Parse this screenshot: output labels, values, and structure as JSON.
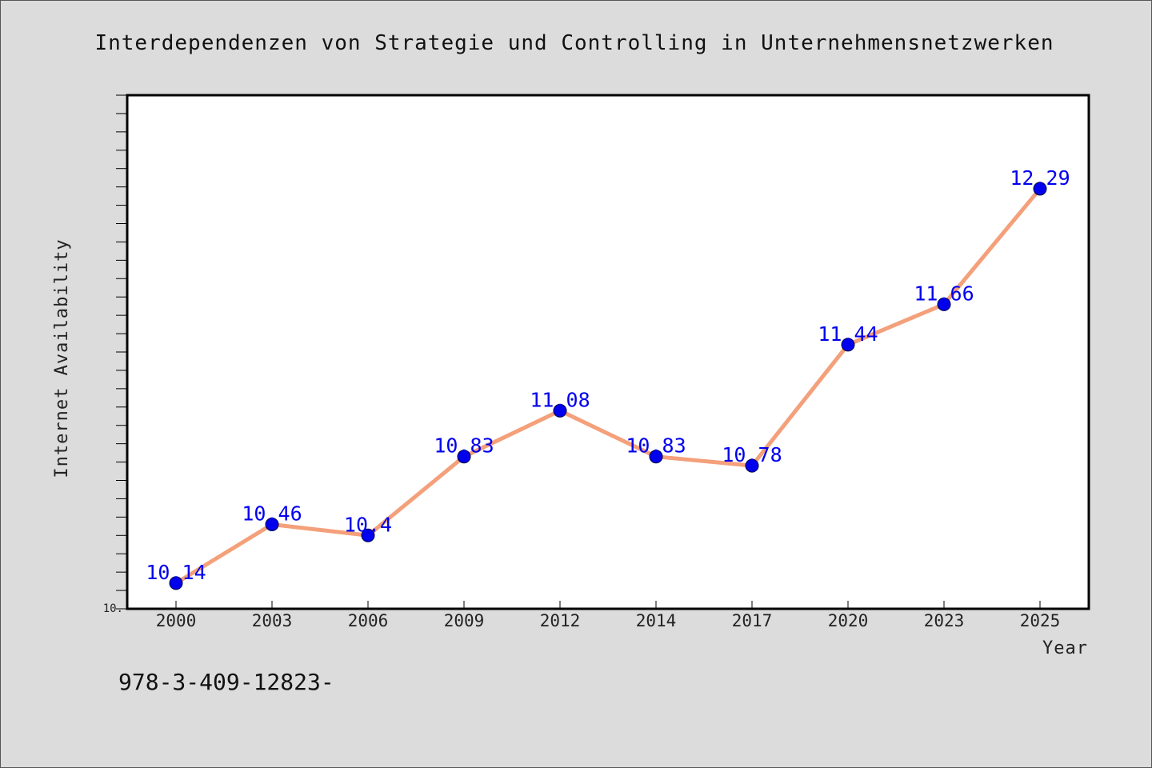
{
  "chart_data": {
    "type": "line",
    "title": "Interdependenzen von Strategie und Controlling in Unternehmensnetzwerken",
    "xlabel": "Year",
    "ylabel": "Internet Availability",
    "categories": [
      "2000",
      "2003",
      "2006",
      "2009",
      "2012",
      "2014",
      "2017",
      "2020",
      "2023",
      "2025"
    ],
    "series": [
      {
        "values": [
          10.14,
          10.46,
          10.4,
          10.83,
          11.08,
          10.83,
          10.78,
          11.44,
          11.66,
          12.29
        ],
        "data_labels": [
          "10.14",
          "10.46",
          "10.4",
          "10.83",
          "11.08",
          "10.83",
          "10.78",
          "11.44",
          "11.66",
          "12.29"
        ],
        "line_color": "#f4a07a",
        "marker_color": "#0000ee"
      }
    ],
    "ylim": [
      10.0,
      12.8
    ],
    "y_tick_labels": [
      "10."
    ],
    "grid": false,
    "legend": "none"
  },
  "footnote": "978-3-409-12823-",
  "colors": {
    "background": "#dcdcdc",
    "plot_background": "#ffffff",
    "line": "#f4a07a",
    "marker": "#0000ee",
    "data_label": "#0000ee"
  }
}
